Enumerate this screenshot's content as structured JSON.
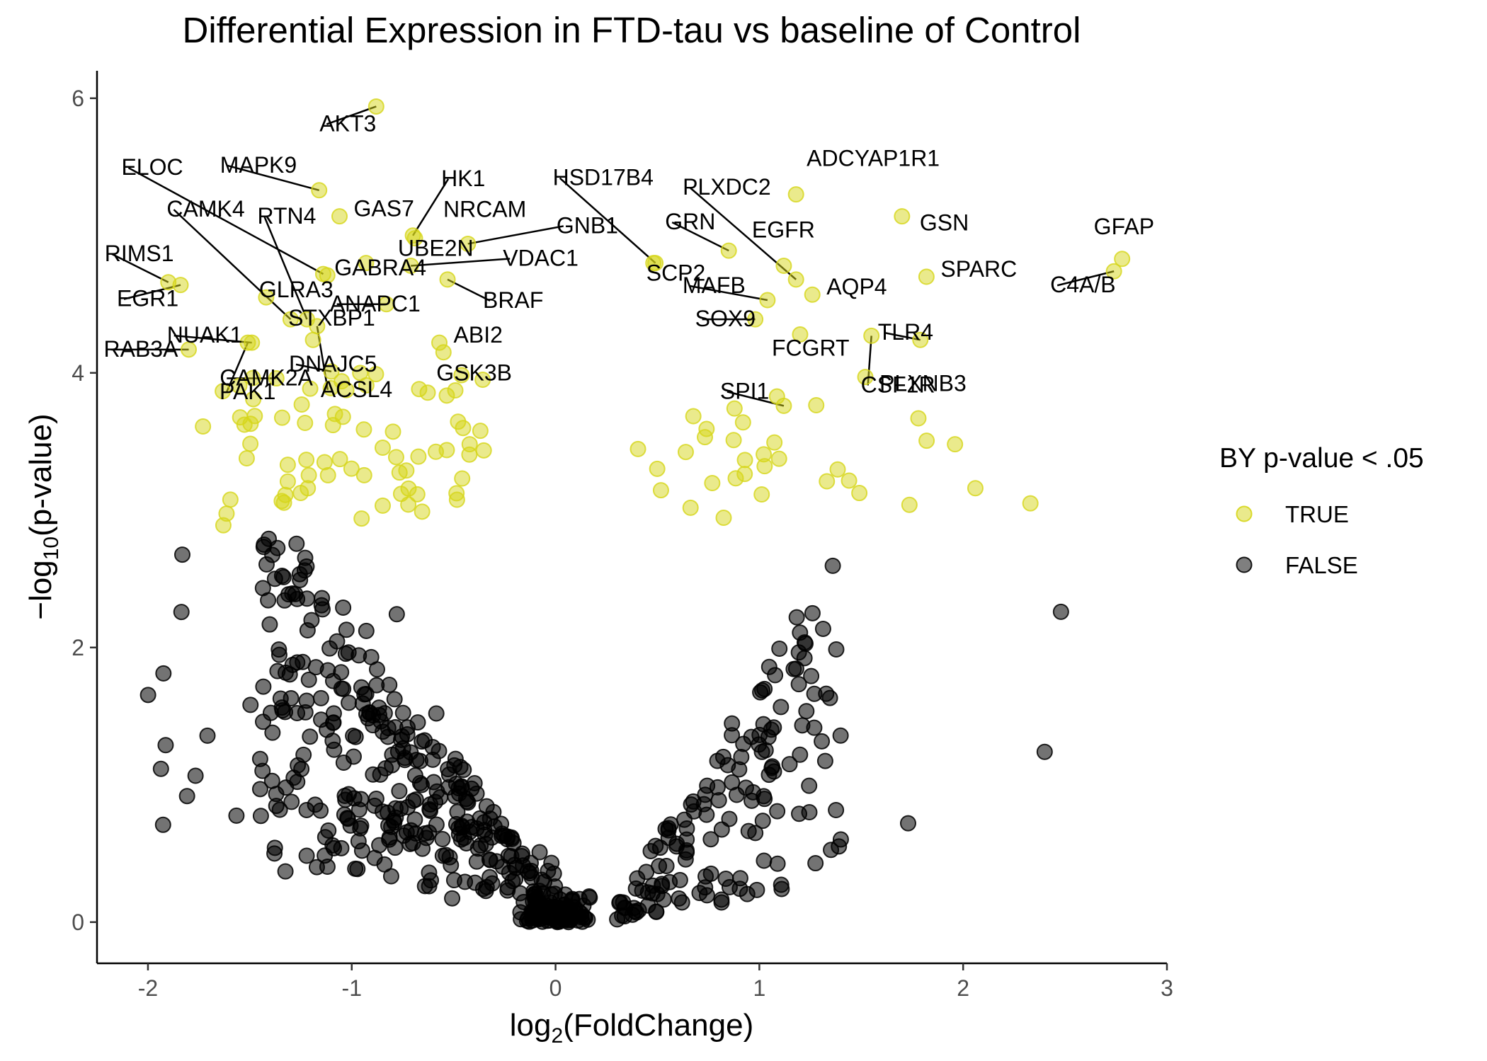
{
  "chart_data": {
    "type": "scatter",
    "title": "Differential Expression in FTD-tau vs baseline of Control",
    "xlabel": {
      "prefix": "log",
      "sub": "2",
      "suffix": "(FoldChange)"
    },
    "ylabel": {
      "prefix": "−log",
      "sub": "10",
      "suffix": "(p-value)"
    },
    "xlim": [
      -2.25,
      3.0
    ],
    "ylim": [
      -0.3,
      6.2
    ],
    "x_ticks": [
      -2,
      -1,
      0,
      1,
      2,
      3
    ],
    "x_tick_labels": [
      "-2",
      "-1",
      "0",
      "1",
      "2",
      "3"
    ],
    "y_ticks": [
      0,
      2,
      4,
      6
    ],
    "y_tick_labels": [
      "0",
      "2",
      "4",
      "6"
    ],
    "grid": false,
    "legend": {
      "title": "BY p-value < .05",
      "position": "right",
      "entries": [
        {
          "label": "TRUE",
          "color": "#d6d619"
        },
        {
          "label": "FALSE",
          "color": "#000000"
        }
      ]
    },
    "colors": {
      "sig": "#d6d619",
      "nonsig": "#000000",
      "axis": "#000000",
      "tick_text": "#4d4d4d"
    },
    "labels": [
      {
        "text": "AKT3",
        "x": -0.88,
        "y": 5.94
      },
      {
        "text": "ADCYAP1R1",
        "x": 1.18,
        "y": 5.3
      },
      {
        "text": "ELOC",
        "x": -1.14,
        "y": 4.72
      },
      {
        "text": "MAPK9",
        "x": -1.16,
        "y": 5.33
      },
      {
        "text": "HK1",
        "x": -0.7,
        "y": 5.0
      },
      {
        "text": "HSD17B4",
        "x": 0.49,
        "y": 4.8
      },
      {
        "text": "PLXDC2",
        "x": 1.18,
        "y": 4.68
      },
      {
        "text": "GAS7",
        "x": -1.06,
        "y": 5.14
      },
      {
        "text": "NRCAM",
        "x": -0.69,
        "y": 4.98
      },
      {
        "text": "CAMK4",
        "x": -1.3,
        "y": 4.39
      },
      {
        "text": "RTN4",
        "x": -1.22,
        "y": 4.39
      },
      {
        "text": "GNB1",
        "x": -0.43,
        "y": 4.94
      },
      {
        "text": "GRN",
        "x": 0.85,
        "y": 4.89
      },
      {
        "text": "EGFR",
        "x": 1.12,
        "y": 4.78
      },
      {
        "text": "GSN",
        "x": 1.7,
        "y": 5.14
      },
      {
        "text": "GFAP",
        "x": 2.78,
        "y": 4.83
      },
      {
        "text": "RIMS1",
        "x": -1.9,
        "y": 4.66
      },
      {
        "text": "GLRA3",
        "x": -1.42,
        "y": 4.55
      },
      {
        "text": "UBE2N",
        "x": -0.93,
        "y": 4.8
      },
      {
        "text": "VDAC1",
        "x": -0.71,
        "y": 4.78
      },
      {
        "text": "SCP2",
        "x": 0.48,
        "y": 4.8
      },
      {
        "text": "SPARC",
        "x": 1.82,
        "y": 4.7
      },
      {
        "text": "GABRA4",
        "x": -1.12,
        "y": 4.71
      },
      {
        "text": "AQP4",
        "x": 1.26,
        "y": 4.57
      },
      {
        "text": "C4A/B",
        "x": 2.74,
        "y": 4.74
      },
      {
        "text": "ANAPC1",
        "x": -0.83,
        "y": 4.5
      },
      {
        "text": "BRAF",
        "x": -0.53,
        "y": 4.68
      },
      {
        "text": "SOX9",
        "x": 0.98,
        "y": 4.39
      },
      {
        "text": "EGR1",
        "x": -1.84,
        "y": 4.64
      },
      {
        "text": "STXBP1",
        "x": -1.19,
        "y": 4.24
      },
      {
        "text": "NUAK1",
        "x": -1.49,
        "y": 4.22
      },
      {
        "text": "TLR4",
        "x": 1.79,
        "y": 4.24
      },
      {
        "text": "MAFB",
        "x": 1.04,
        "y": 4.53
      },
      {
        "text": "DNAJC5",
        "x": -1.1,
        "y": 4.01
      },
      {
        "text": "ABI2",
        "x": -0.57,
        "y": 4.22
      },
      {
        "text": "FCGRT",
        "x": 1.2,
        "y": 4.28
      },
      {
        "text": "PLXNB3",
        "x": 1.52,
        "y": 3.97
      },
      {
        "text": "RAB3A",
        "x": -1.8,
        "y": 4.17
      },
      {
        "text": "CAMK2A",
        "x": -1.37,
        "y": 3.96
      },
      {
        "text": "GSK3B",
        "x": -0.55,
        "y": 4.15
      },
      {
        "text": "SPI1",
        "x": 1.12,
        "y": 3.76
      },
      {
        "text": "CSF1R",
        "x": 1.55,
        "y": 4.27
      },
      {
        "text": "ACSL4",
        "x": -1.17,
        "y": 4.34
      },
      {
        "text": "PAK1",
        "x": -1.51,
        "y": 4.22
      }
    ]
  }
}
